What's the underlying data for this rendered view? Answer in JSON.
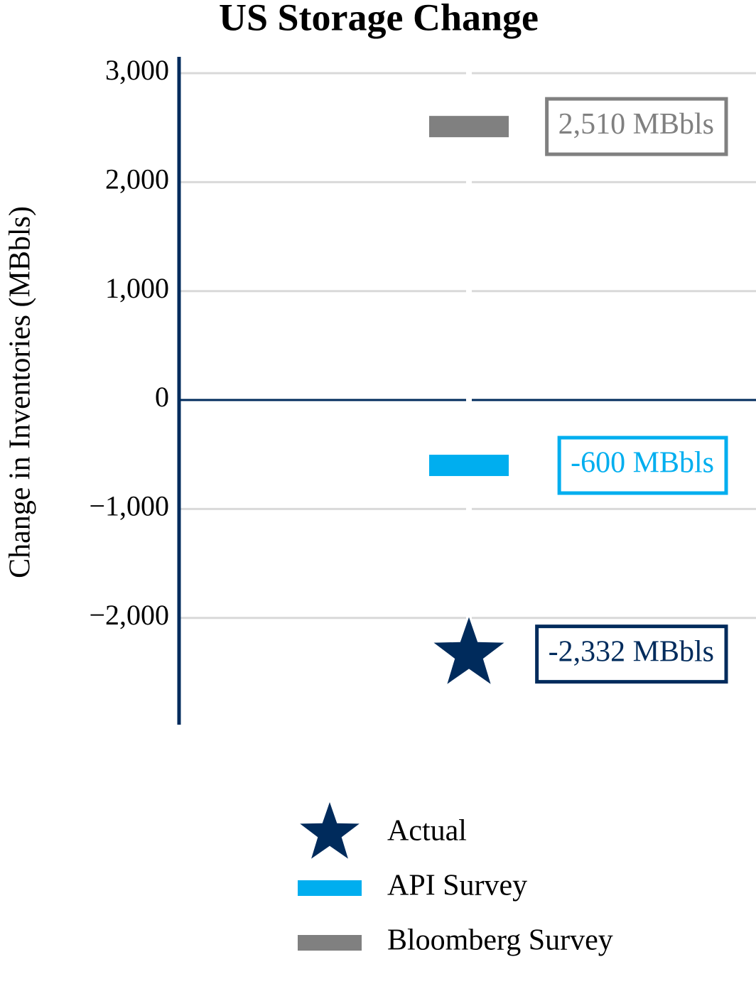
{
  "chart_data": {
    "type": "scatter",
    "title": "US Storage Change",
    "ylabel": "Change in Inventories (MBbls)",
    "ylim": [
      -2980,
      3150
    ],
    "yticks": [
      {
        "value": 3000,
        "label": "3,000"
      },
      {
        "value": 2000,
        "label": "2,000"
      },
      {
        "value": 1000,
        "label": "1,000"
      },
      0,
      {
        "value": -1000,
        "label": "−1,000"
      },
      {
        "value": -2000,
        "label": "−2,000"
      }
    ],
    "grid": true,
    "series": [
      {
        "name": "Actual",
        "color": "#002b5c",
        "marker": "star",
        "values": [
          -2332
        ],
        "value_labels": [
          "-2,332 MBbls"
        ]
      },
      {
        "name": "API Survey",
        "color": "#00aeef",
        "marker": "dash",
        "values": [
          -600
        ],
        "value_labels": [
          "-600 MBbls"
        ]
      },
      {
        "name": "Bloomberg Survey",
        "color": "#808080",
        "marker": "dash",
        "values": [
          2510
        ],
        "value_labels": [
          "2,510 MBbls"
        ]
      }
    ],
    "legend": "bottom"
  }
}
